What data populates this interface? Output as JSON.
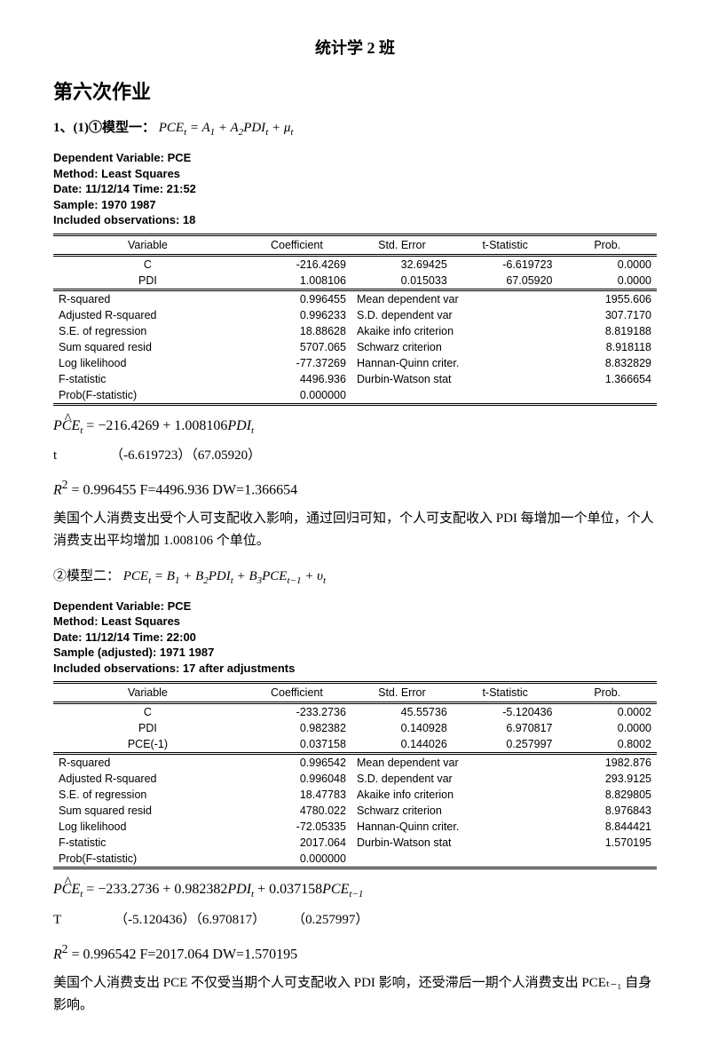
{
  "header": "统计学 2 班",
  "section": "第六次作业",
  "p1_label": "1、(1)①模型一：",
  "p1_formula": "PCEₜ = A₁ + A₂PDIₜ + μₜ",
  "meta1": {
    "l1": "Dependent Variable: PCE",
    "l2": "Method: Least Squares",
    "l3": "Date: 11/12/14  Time: 21:52",
    "l4": "Sample: 1970 1987",
    "l5": "Included observations: 18"
  },
  "hdr": {
    "v": "Variable",
    "c": "Coefficient",
    "s": "Std. Error",
    "t": "t-Statistic",
    "p": "Prob."
  },
  "t1": {
    "r1": {
      "v": "C",
      "c": "-216.4269",
      "s": "32.69425",
      "t": "-6.619723",
      "p": "0.0000"
    },
    "r2": {
      "v": "PDI",
      "c": "1.008106",
      "s": "0.015033",
      "t": "67.05920",
      "p": "0.0000"
    },
    "s1": {
      "a": "R-squared",
      "b": "0.996455",
      "c": "Mean dependent var",
      "d": "1955.606"
    },
    "s2": {
      "a": "Adjusted R-squared",
      "b": "0.996233",
      "c": "S.D. dependent var",
      "d": "307.7170"
    },
    "s3": {
      "a": "S.E. of regression",
      "b": "18.88628",
      "c": "Akaike info criterion",
      "d": "8.819188"
    },
    "s4": {
      "a": "Sum squared resid",
      "b": "5707.065",
      "c": "Schwarz criterion",
      "d": "8.918118"
    },
    "s5": {
      "a": "Log likelihood",
      "b": "-77.37269",
      "c": "Hannan-Quinn criter.",
      "d": "8.832829"
    },
    "s6": {
      "a": "F-statistic",
      "b": "4496.936",
      "c": "Durbin-Watson stat",
      "d": "1.366654"
    },
    "s7": {
      "a": "Prob(F-statistic)",
      "b": "0.000000",
      "c": "",
      "d": ""
    }
  },
  "eq1": "= −216.4269 + 1.008106",
  "eq1_t": "t",
  "eq1_tv": "（-6.619723）（67.05920）",
  "eq1_r": "= 0.996455  F=4496.936 DW=1.366654",
  "txt1": "美国个人消费支出受个人可支配收入影响，通过回归可知，个人可支配收入 PDI 每增加一个单位，个人消费支出平均增加 1.008106 个单位。",
  "p2_label": "②模型二：",
  "p2_formula": "PCEₜ = B₁ + B₂PDIₜ + B₃PCEₜ₋₁ + υₜ",
  "meta2": {
    "l1": "Dependent Variable: PCE",
    "l2": "Method: Least Squares",
    "l3": "Date: 11/12/14  Time: 22:00",
    "l4": "Sample (adjusted): 1971 1987",
    "l5": "Included observations: 17 after adjustments"
  },
  "t2": {
    "r1": {
      "v": "C",
      "c": "-233.2736",
      "s": "45.55736",
      "t": "-5.120436",
      "p": "0.0002"
    },
    "r2": {
      "v": "PDI",
      "c": "0.982382",
      "s": "0.140928",
      "t": "6.970817",
      "p": "0.0000"
    },
    "r3": {
      "v": "PCE(-1)",
      "c": "0.037158",
      "s": "0.144026",
      "t": "0.257997",
      "p": "0.8002"
    },
    "s1": {
      "a": "R-squared",
      "b": "0.996542",
      "c": "Mean dependent var",
      "d": "1982.876"
    },
    "s2": {
      "a": "Adjusted R-squared",
      "b": "0.996048",
      "c": "S.D. dependent var",
      "d": "293.9125"
    },
    "s3": {
      "a": "S.E. of regression",
      "b": "18.47783",
      "c": "Akaike info criterion",
      "d": "8.829805"
    },
    "s4": {
      "a": "Sum squared resid",
      "b": "4780.022",
      "c": "Schwarz criterion",
      "d": "8.976843"
    },
    "s5": {
      "a": "Log likelihood",
      "b": "-72.05335",
      "c": "Hannan-Quinn criter.",
      "d": "8.844421"
    },
    "s6": {
      "a": "F-statistic",
      "b": "2017.064",
      "c": "Durbin-Watson stat",
      "d": "1.570195"
    },
    "s7": {
      "a": "Prob(F-statistic)",
      "b": "0.000000",
      "c": "",
      "d": ""
    }
  },
  "eq2": "= −233.2736 + 0.982382",
  "eq2b": "+ 0.037158",
  "eq2_t": "T",
  "eq2_tv": "（-5.120436）（6.970817）",
  "eq2_tv2": "（0.257997）",
  "eq2_r": "= 0.996542    F=2017.064        DW=1.570195",
  "txt2": "美国个人消费支出 PCE 不仅受当期个人可支配收入 PDI 影响，还受滞后一期个人消费支出 PCEₜ₋₁ 自身影响。"
}
